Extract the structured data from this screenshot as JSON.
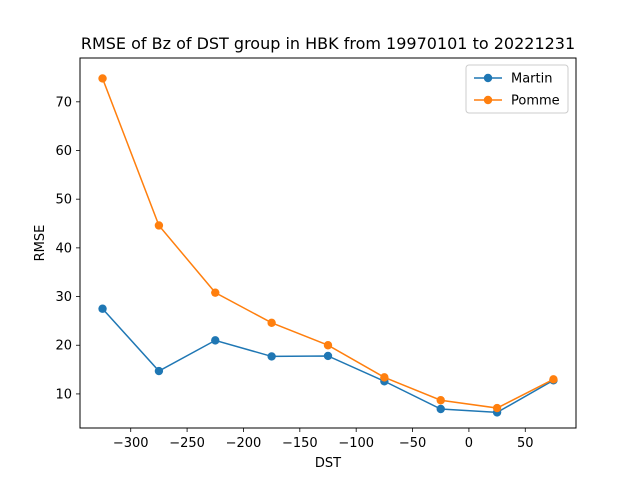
{
  "chart_data": {
    "type": "line",
    "title": "RMSE of Bz of DST group in HBK from 19970101 to 20221231",
    "xlabel": "DST",
    "ylabel": "RMSE",
    "xlim": [
      -345,
      95
    ],
    "ylim": [
      3,
      79
    ],
    "xticks": [
      -300,
      -250,
      -200,
      -150,
      -100,
      -50,
      0,
      50
    ],
    "yticks": [
      10,
      20,
      30,
      40,
      50,
      60,
      70
    ],
    "grid": false,
    "legend_position": "upper-right",
    "x": [
      -325,
      -275,
      -225,
      -175,
      -125,
      -75,
      -25,
      25,
      75
    ],
    "series": [
      {
        "name": "Martin",
        "color": "#1f77b4",
        "values": [
          27.5,
          14.7,
          21.0,
          17.7,
          17.8,
          12.6,
          6.9,
          6.2,
          12.8
        ]
      },
      {
        "name": "Pomme",
        "color": "#ff7f0e",
        "values": [
          74.8,
          44.6,
          30.8,
          24.6,
          20.0,
          13.4,
          8.7,
          7.1,
          13.0
        ]
      }
    ]
  }
}
